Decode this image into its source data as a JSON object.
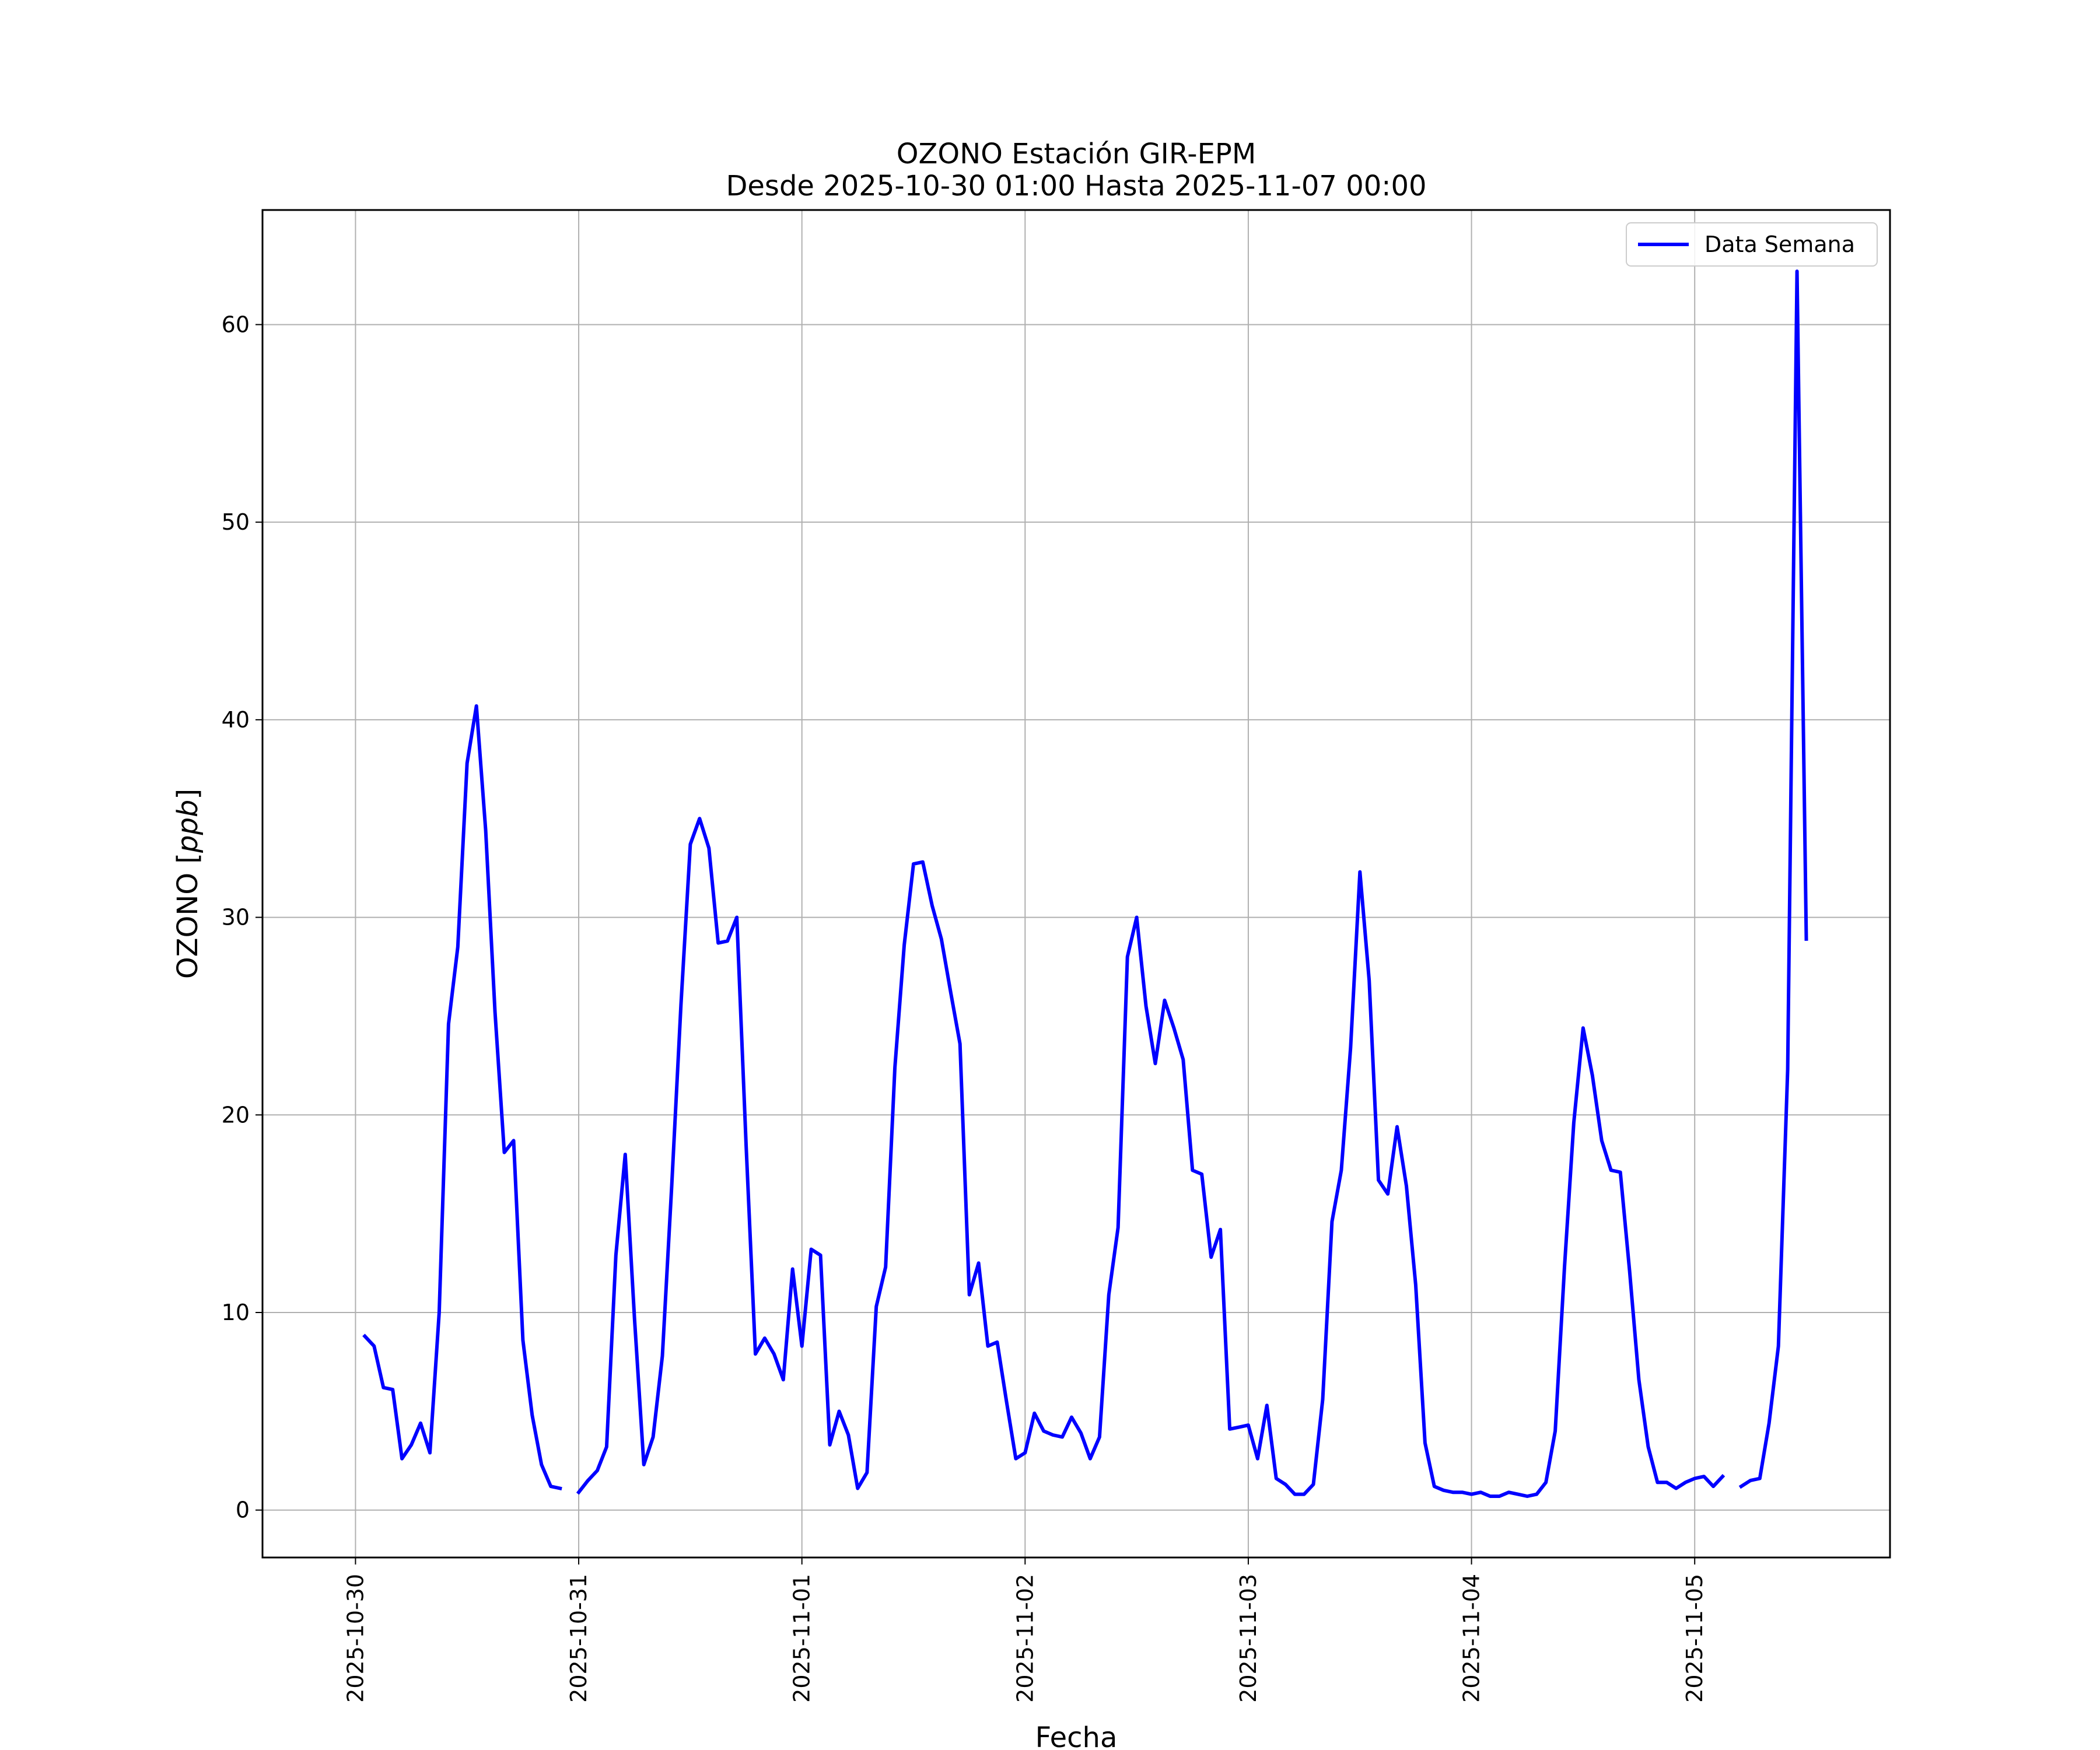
{
  "chart_data": {
    "type": "line",
    "title": "OZONO Estación GIR-EPM",
    "subtitle": "Desde 2025-10-30 01:00 Hasta 2025-11-07 00:00",
    "xlabel": "Fecha",
    "ylabel": "OZONO [ppb]",
    "ylabel_parts": {
      "prefix": "OZONO [",
      "unit": "ppb",
      "suffix": "]"
    },
    "xlim": [
      "2025-10-29 14:00",
      "2025-11-05 21:00"
    ],
    "ylim": [
      -2.4,
      65.8
    ],
    "grid": true,
    "legend_position": "top-right",
    "line_color": "#0000ff",
    "x_ticks": [
      "2025-10-30",
      "2025-10-31",
      "2025-11-01",
      "2025-11-02",
      "2025-11-03",
      "2025-11-04",
      "2025-11-05"
    ],
    "y_ticks": [
      0,
      10,
      20,
      30,
      40,
      50,
      60
    ],
    "series": [
      {
        "name": "Data Semana",
        "color": "#0000ff",
        "points": [
          [
            "2025-10-30 01:00",
            8.8
          ],
          [
            "2025-10-30 02:00",
            8.3
          ],
          [
            "2025-10-30 03:00",
            6.2
          ],
          [
            "2025-10-30 04:00",
            6.1
          ],
          [
            "2025-10-30 05:00",
            2.6
          ],
          [
            "2025-10-30 06:00",
            3.3
          ],
          [
            "2025-10-30 07:00",
            4.4
          ],
          [
            "2025-10-30 08:00",
            2.9
          ],
          [
            "2025-10-30 09:00",
            10.0
          ],
          [
            "2025-10-30 10:00",
            24.6
          ],
          [
            "2025-10-30 11:00",
            28.5
          ],
          [
            "2025-10-30 12:00",
            37.8
          ],
          [
            "2025-10-30 13:00",
            40.7
          ],
          [
            "2025-10-30 14:00",
            34.4
          ],
          [
            "2025-10-30 15:00",
            25.2
          ],
          [
            "2025-10-30 16:00",
            18.1
          ],
          [
            "2025-10-30 17:00",
            18.7
          ],
          [
            "2025-10-30 18:00",
            8.6
          ],
          [
            "2025-10-30 19:00",
            4.8
          ],
          [
            "2025-10-30 20:00",
            2.3
          ],
          [
            "2025-10-30 21:00",
            1.2
          ],
          [
            "2025-10-30 22:00",
            1.1
          ],
          [
            "2025-10-30 23:00",
            null
          ],
          [
            "2025-10-31 00:00",
            0.9
          ],
          [
            "2025-10-31 01:00",
            1.5
          ],
          [
            "2025-10-31 02:00",
            2.0
          ],
          [
            "2025-10-31 03:00",
            3.2
          ],
          [
            "2025-10-31 04:00",
            12.9
          ],
          [
            "2025-10-31 05:00",
            18.0
          ],
          [
            "2025-10-31 06:00",
            9.7
          ],
          [
            "2025-10-31 07:00",
            2.3
          ],
          [
            "2025-10-31 08:00",
            3.7
          ],
          [
            "2025-10-31 09:00",
            7.8
          ],
          [
            "2025-10-31 10:00",
            16.4
          ],
          [
            "2025-10-31 11:00",
            25.6
          ],
          [
            "2025-10-31 12:00",
            33.7
          ],
          [
            "2025-10-31 13:00",
            35.0
          ],
          [
            "2025-10-31 14:00",
            33.5
          ],
          [
            "2025-10-31 15:00",
            28.7
          ],
          [
            "2025-10-31 16:00",
            28.8
          ],
          [
            "2025-10-31 17:00",
            30.0
          ],
          [
            "2025-10-31 18:00",
            18.5
          ],
          [
            "2025-10-31 19:00",
            7.9
          ],
          [
            "2025-10-31 20:00",
            8.7
          ],
          [
            "2025-10-31 21:00",
            7.9
          ],
          [
            "2025-10-31 22:00",
            6.6
          ],
          [
            "2025-10-31 23:00",
            12.2
          ],
          [
            "2025-11-01 00:00",
            8.3
          ],
          [
            "2025-11-01 01:00",
            13.2
          ],
          [
            "2025-11-01 02:00",
            12.9
          ],
          [
            "2025-11-01 03:00",
            3.3
          ],
          [
            "2025-11-01 04:00",
            5.0
          ],
          [
            "2025-11-01 05:00",
            3.8
          ],
          [
            "2025-11-01 06:00",
            1.1
          ],
          [
            "2025-11-01 07:00",
            1.9
          ],
          [
            "2025-11-01 08:00",
            10.3
          ],
          [
            "2025-11-01 09:00",
            12.3
          ],
          [
            "2025-11-01 10:00",
            22.4
          ],
          [
            "2025-11-01 11:00",
            28.6
          ],
          [
            "2025-11-01 12:00",
            32.7
          ],
          [
            "2025-11-01 13:00",
            32.8
          ],
          [
            "2025-11-01 14:00",
            30.6
          ],
          [
            "2025-11-01 15:00",
            28.9
          ],
          [
            "2025-11-01 16:00",
            26.2
          ],
          [
            "2025-11-01 17:00",
            23.6
          ],
          [
            "2025-11-01 18:00",
            10.9
          ],
          [
            "2025-11-01 19:00",
            12.5
          ],
          [
            "2025-11-01 20:00",
            8.3
          ],
          [
            "2025-11-01 21:00",
            8.5
          ],
          [
            "2025-11-01 22:00",
            5.5
          ],
          [
            "2025-11-01 23:00",
            2.6
          ],
          [
            "2025-11-02 00:00",
            2.9
          ],
          [
            "2025-11-02 01:00",
            4.9
          ],
          [
            "2025-11-02 02:00",
            4.0
          ],
          [
            "2025-11-02 03:00",
            3.8
          ],
          [
            "2025-11-02 04:00",
            3.7
          ],
          [
            "2025-11-02 05:00",
            4.7
          ],
          [
            "2025-11-02 06:00",
            3.9
          ],
          [
            "2025-11-02 07:00",
            2.6
          ],
          [
            "2025-11-02 08:00",
            3.7
          ],
          [
            "2025-11-02 09:00",
            10.9
          ],
          [
            "2025-11-02 10:00",
            14.3
          ],
          [
            "2025-11-02 11:00",
            28.0
          ],
          [
            "2025-11-02 12:00",
            30.0
          ],
          [
            "2025-11-02 13:00",
            25.5
          ],
          [
            "2025-11-02 14:00",
            22.6
          ],
          [
            "2025-11-02 15:00",
            25.8
          ],
          [
            "2025-11-02 16:00",
            24.4
          ],
          [
            "2025-11-02 17:00",
            22.8
          ],
          [
            "2025-11-02 18:00",
            17.2
          ],
          [
            "2025-11-02 19:00",
            17.0
          ],
          [
            "2025-11-02 20:00",
            12.8
          ],
          [
            "2025-11-02 21:00",
            14.2
          ],
          [
            "2025-11-02 22:00",
            4.1
          ],
          [
            "2025-11-02 23:00",
            4.2
          ],
          [
            "2025-11-03 00:00",
            4.3
          ],
          [
            "2025-11-03 01:00",
            2.6
          ],
          [
            "2025-11-03 02:00",
            5.3
          ],
          [
            "2025-11-03 03:00",
            1.6
          ],
          [
            "2025-11-03 04:00",
            1.3
          ],
          [
            "2025-11-03 05:00",
            0.8
          ],
          [
            "2025-11-03 06:00",
            0.8
          ],
          [
            "2025-11-03 07:00",
            1.3
          ],
          [
            "2025-11-03 08:00",
            5.6
          ],
          [
            "2025-11-03 09:00",
            14.6
          ],
          [
            "2025-11-03 10:00",
            17.2
          ],
          [
            "2025-11-03 11:00",
            23.4
          ],
          [
            "2025-11-03 12:00",
            32.3
          ],
          [
            "2025-11-03 13:00",
            26.8
          ],
          [
            "2025-11-03 14:00",
            16.7
          ],
          [
            "2025-11-03 15:00",
            16.0
          ],
          [
            "2025-11-03 16:00",
            19.4
          ],
          [
            "2025-11-03 17:00",
            16.4
          ],
          [
            "2025-11-03 18:00",
            11.4
          ],
          [
            "2025-11-03 19:00",
            3.4
          ],
          [
            "2025-11-03 20:00",
            1.2
          ],
          [
            "2025-11-03 21:00",
            1.0
          ],
          [
            "2025-11-03 22:00",
            0.9
          ],
          [
            "2025-11-03 23:00",
            0.9
          ],
          [
            "2025-11-04 00:00",
            0.8
          ],
          [
            "2025-11-04 01:00",
            0.9
          ],
          [
            "2025-11-04 02:00",
            0.7
          ],
          [
            "2025-11-04 03:00",
            0.7
          ],
          [
            "2025-11-04 04:00",
            0.9
          ],
          [
            "2025-11-04 05:00",
            0.8
          ],
          [
            "2025-11-04 06:00",
            0.7
          ],
          [
            "2025-11-04 07:00",
            0.8
          ],
          [
            "2025-11-04 08:00",
            1.4
          ],
          [
            "2025-11-04 09:00",
            4.0
          ],
          [
            "2025-11-04 10:00",
            12.3
          ],
          [
            "2025-11-04 11:00",
            19.6
          ],
          [
            "2025-11-04 12:00",
            24.4
          ],
          [
            "2025-11-04 13:00",
            22.0
          ],
          [
            "2025-11-04 14:00",
            18.7
          ],
          [
            "2025-11-04 15:00",
            17.2
          ],
          [
            "2025-11-04 16:00",
            17.1
          ],
          [
            "2025-11-04 17:00",
            12.1
          ],
          [
            "2025-11-04 18:00",
            6.6
          ],
          [
            "2025-11-04 19:00",
            3.2
          ],
          [
            "2025-11-04 20:00",
            1.4
          ],
          [
            "2025-11-04 21:00",
            1.4
          ],
          [
            "2025-11-04 22:00",
            1.1
          ],
          [
            "2025-11-04 23:00",
            1.4
          ],
          [
            "2025-11-05 00:00",
            1.6
          ],
          [
            "2025-11-05 01:00",
            1.7
          ],
          [
            "2025-11-05 02:00",
            1.2
          ],
          [
            "2025-11-05 03:00",
            1.7
          ],
          [
            "2025-11-05 04:00",
            null
          ],
          [
            "2025-11-05 05:00",
            1.2
          ],
          [
            "2025-11-05 06:00",
            1.5
          ],
          [
            "2025-11-05 07:00",
            1.6
          ],
          [
            "2025-11-05 08:00",
            4.4
          ],
          [
            "2025-11-05 09:00",
            8.3
          ],
          [
            "2025-11-05 10:00",
            22.3
          ],
          [
            "2025-11-05 11:00",
            62.7
          ],
          [
            "2025-11-05 12:00",
            28.9
          ]
        ]
      }
    ]
  }
}
